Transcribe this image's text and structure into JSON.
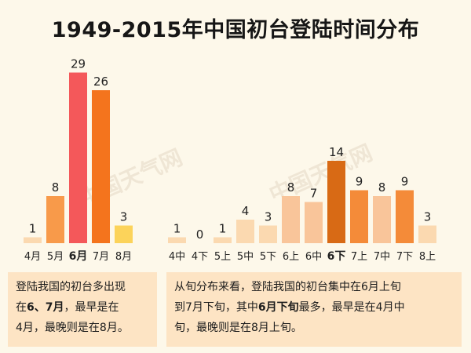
{
  "title": "1949-2015年中国初台登陆时间分布",
  "watermark": "中国天气网",
  "chart_data": [
    {
      "type": "bar",
      "categories": [
        "4月",
        "5月",
        "6月",
        "7月",
        "8月"
      ],
      "values": [
        1,
        8,
        29,
        26,
        3
      ],
      "highlight_category": "6月",
      "colors": [
        "#fbd9b0",
        "#f89a4a",
        "#f4585a",
        "#f4741d",
        "#fcd35a"
      ],
      "ylim": [
        0,
        30
      ]
    },
    {
      "type": "bar",
      "categories": [
        "4中",
        "4下",
        "5上",
        "5中",
        "5下",
        "6上",
        "6中",
        "6下",
        "7上",
        "7中",
        "7下",
        "8上"
      ],
      "values": [
        1,
        0,
        1,
        4,
        3,
        8,
        7,
        14,
        9,
        8,
        9,
        3
      ],
      "highlight_category": "6下",
      "colors": [
        "#fbd9b0",
        "#fbd9b0",
        "#fbd9b0",
        "#fbd9b0",
        "#fbd9b0",
        "#f9c59a",
        "#f9c59a",
        "#d86a15",
        "#f48b39",
        "#f9c59a",
        "#f48b39",
        "#fbd9b0"
      ],
      "ylim": [
        0,
        30
      ]
    }
  ],
  "panels": {
    "left": {
      "line1": "登陆我国的初台多出现",
      "line2_prefix": "在",
      "line2_bold": "6、7月",
      "line2_suffix": "，最早是在",
      "line3": "4月，最晚则是在8月。"
    },
    "right": {
      "line1": "从旬分布来看，登陆我国的初台集中在6月上旬",
      "line2_prefix": "到7月下旬，其中",
      "line2_bold": "6月下旬",
      "line2_suffix": "最多，最早是在4月中",
      "line3": "旬，最晚则是在8月上旬。"
    }
  }
}
